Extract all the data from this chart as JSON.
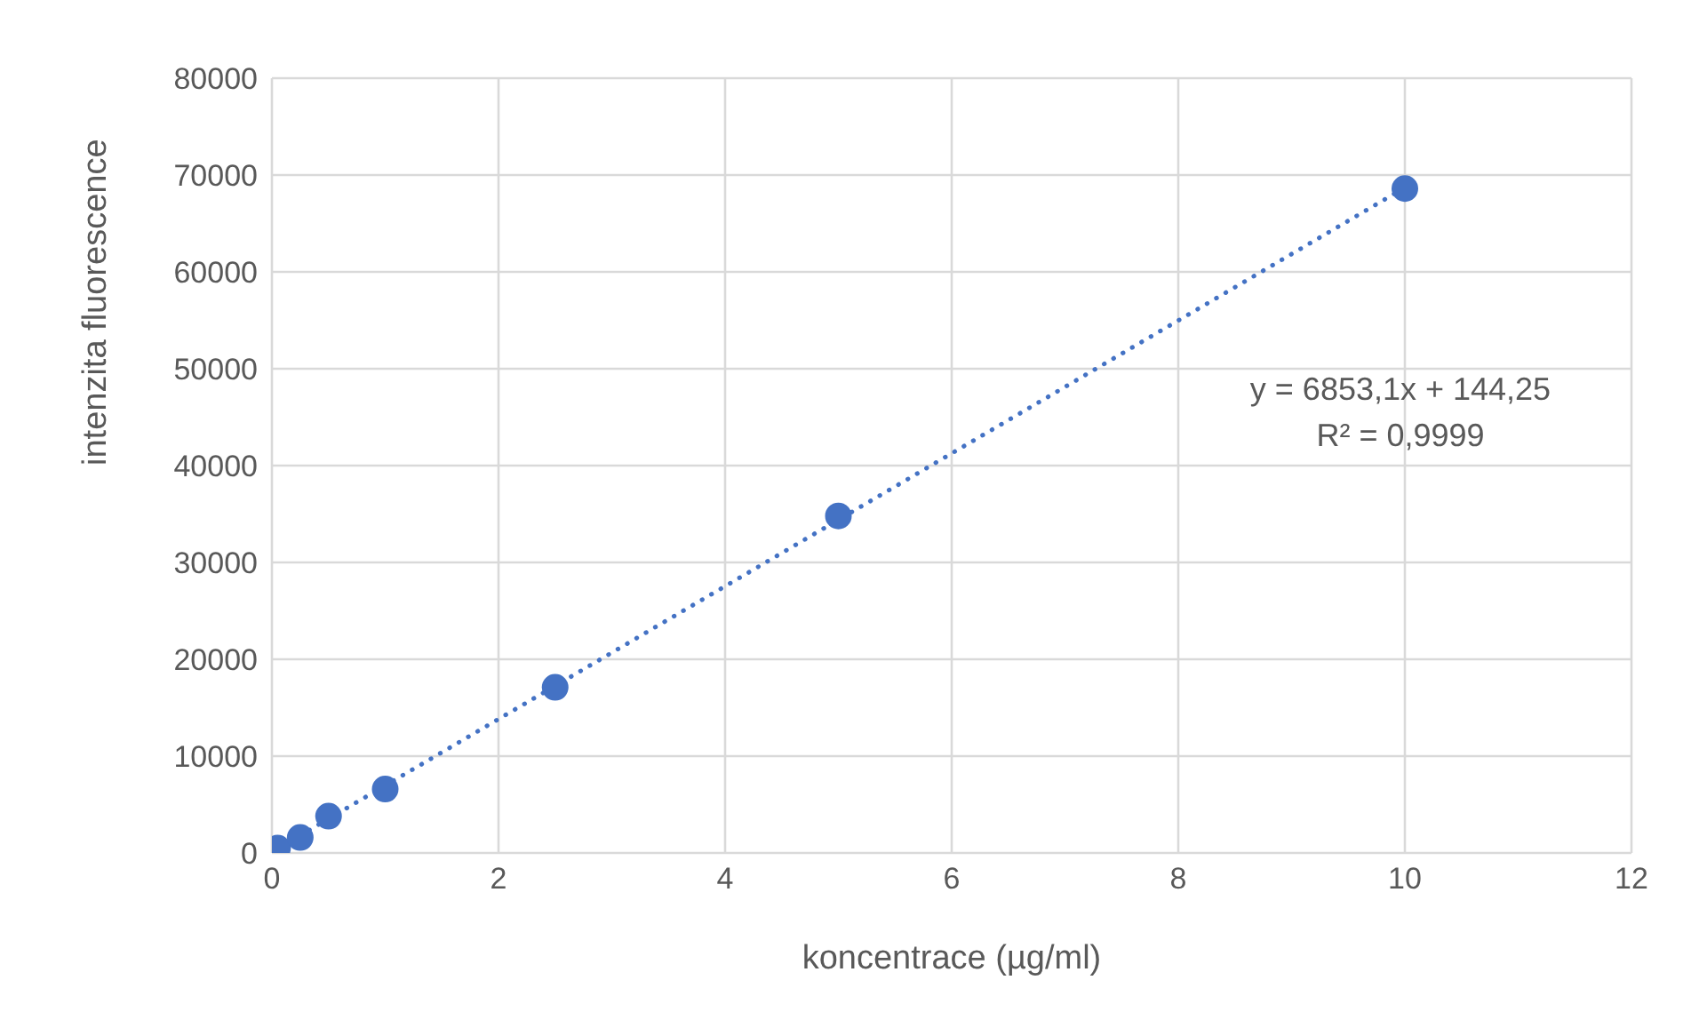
{
  "chart_data": {
    "type": "scatter",
    "xlabel": "koncentrace (µg/ml)",
    "ylabel": "intenzita fluorescence",
    "xlim": [
      0,
      12
    ],
    "xticks": [
      0,
      2,
      4,
      6,
      8,
      10,
      12
    ],
    "ylim": [
      0,
      80000
    ],
    "yticks": [
      0,
      10000,
      20000,
      30000,
      40000,
      50000,
      60000,
      70000,
      80000
    ],
    "grid": true,
    "legend": false,
    "marker": "circle",
    "series": [
      {
        "color": "#4472c4",
        "x": [
          0.05,
          0.25,
          0.5,
          1,
          2.5,
          5,
          10
        ],
        "values": [
          500,
          1600,
          3800,
          6600,
          17100,
          34800,
          68600
        ]
      },
      {
        "type": "line",
        "color": "#4472c4",
        "line_style": "dotted",
        "marker": "none",
        "x": [
          0,
          10
        ],
        "values": [
          100,
          68700
        ]
      }
    ],
    "annotations": [
      "y = 6853,1x + 144,25",
      "R² = 0,9999"
    ]
  }
}
